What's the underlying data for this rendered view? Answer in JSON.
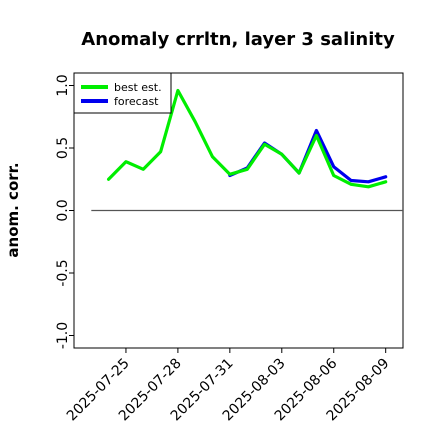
{
  "chart_data": {
    "type": "line",
    "title": "Anomaly crrltn, layer 3 salinity",
    "xlabel": "",
    "ylabel": "anom. corr.",
    "ylim": [
      -1.1,
      1.1
    ],
    "yticks": [
      {
        "value": -1.0,
        "label": "-1.0"
      },
      {
        "value": -0.5,
        "label": "-0.5"
      },
      {
        "value": 0.0,
        "label": "0.0"
      },
      {
        "value": 0.5,
        "label": "0.5"
      },
      {
        "value": 1.0,
        "label": "1.0"
      }
    ],
    "xlim": [
      "2025-07-22",
      "2025-08-10"
    ],
    "xticks": [
      {
        "date": "2025-07-25",
        "label": "2025-07-25",
        "color": "#000000"
      },
      {
        "date": "2025-07-28",
        "label": "2025-07-28",
        "color": "#000000"
      },
      {
        "date": "2025-07-31",
        "label": "2025-07-31",
        "color": "#228b22"
      },
      {
        "date": "2025-08-03",
        "label": "2025-08-03",
        "color": "#000000"
      },
      {
        "date": "2025-08-06",
        "label": "2025-08-06",
        "color": "#000000"
      },
      {
        "date": "2025-08-09",
        "label": "2025-08-09",
        "color": "#000000"
      }
    ],
    "zero_line": {
      "value": 0.0,
      "from": "2025-07-23",
      "to": "2025-08-10",
      "color": "#555555"
    },
    "grid": false,
    "legend_position": "top-left",
    "series": [
      {
        "name": "best est.",
        "color": "#00ee00",
        "x": [
          "2025-07-24",
          "2025-07-25",
          "2025-07-26",
          "2025-07-27",
          "2025-07-28",
          "2025-07-29",
          "2025-07-30",
          "2025-07-31"
        ],
        "y": [
          0.25,
          0.39,
          0.33,
          0.47,
          0.96,
          0.71,
          0.43,
          0.29
        ]
      },
      {
        "name": "forecast",
        "color": "#0000ee",
        "x": [
          "2025-07-31",
          "2025-08-01",
          "2025-08-02",
          "2025-08-03",
          "2025-08-04",
          "2025-08-05",
          "2025-08-06",
          "2025-08-07",
          "2025-08-08",
          "2025-08-09"
        ],
        "y": [
          0.28,
          0.34,
          0.54,
          0.45,
          0.3,
          0.64,
          0.35,
          0.24,
          0.23,
          0.27
        ]
      },
      {
        "name": "",
        "color": "#00ee00",
        "x": [
          "2025-07-31",
          "2025-08-01",
          "2025-08-02",
          "2025-08-03",
          "2025-08-04",
          "2025-08-05",
          "2025-08-06",
          "2025-08-07",
          "2025-08-08",
          "2025-08-09"
        ],
        "y": [
          0.29,
          0.33,
          0.53,
          0.45,
          0.3,
          0.6,
          0.28,
          0.21,
          0.19,
          0.23
        ]
      }
    ],
    "legend": [
      {
        "label": "best est.",
        "color": "#00ee00"
      },
      {
        "label": "forecast",
        "color": "#0000ee"
      }
    ]
  }
}
